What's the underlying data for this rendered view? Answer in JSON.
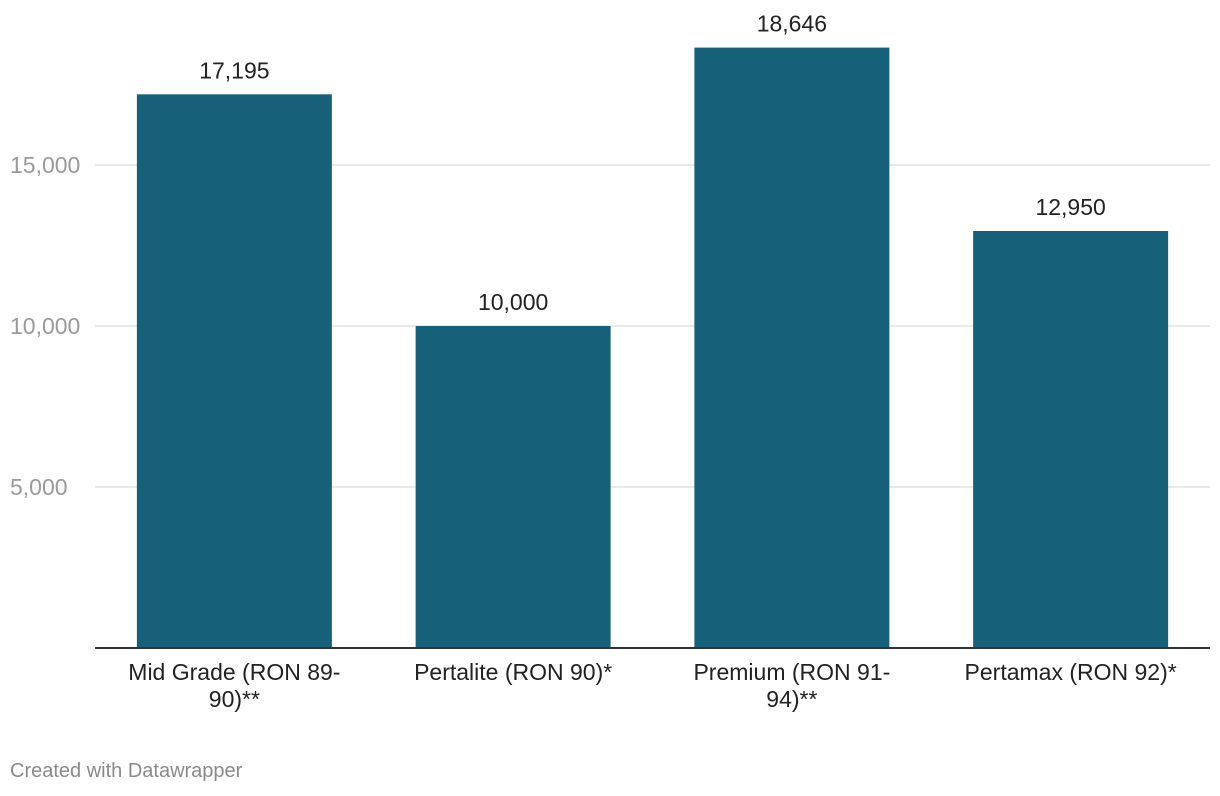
{
  "chart_data": {
    "type": "bar",
    "categories": [
      [
        "Mid Grade (RON 89-",
        "90)**"
      ],
      [
        "Pertalite (RON 90)*"
      ],
      [
        "Premium (RON 91-",
        "94)**"
      ],
      [
        "Pertamax (RON 92)*"
      ]
    ],
    "values": [
      17195,
      10000,
      18646,
      12950
    ],
    "value_labels": [
      "17,195",
      "10,000",
      "18,646",
      "12,950"
    ],
    "yticks": [
      5000,
      10000,
      15000
    ],
    "ytick_labels": [
      "5,000",
      "10,000",
      "15,000"
    ],
    "ylim": [
      0,
      20000
    ],
    "grid": true,
    "bar_color": "#17607a",
    "title": "",
    "xlabel": "",
    "ylabel": ""
  },
  "footer": {
    "credit": "Created with Datawrapper"
  }
}
